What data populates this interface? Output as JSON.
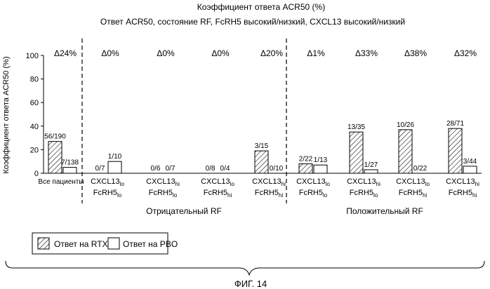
{
  "title": "Коэффициент ответа ACR50 (%)",
  "subtitle": "Ответ ACR50, состояние RF, FcRH5 высокий/низкий, CXCL13 высокий/низкий",
  "figure_caption": "ФИГ. 14",
  "colors": {
    "ink": "#000000",
    "bar_rtx_fill": "hatch",
    "bar_pbo_fill": "#ffffff"
  },
  "chart_data": {
    "type": "bar",
    "ylabel": "Коэффициент ответа ACR50 (%)",
    "ylim": [
      0,
      100
    ],
    "yticks": [
      0,
      20,
      40,
      60,
      80,
      100
    ],
    "grid": false,
    "legend_position": "bottom-left",
    "series": [
      {
        "name": "Ответ на RTX",
        "values": [
          27,
          0,
          0,
          0,
          19,
          8,
          35,
          37,
          38
        ],
        "labels": [
          "56/190",
          "0/7",
          "0/6",
          "0/8",
          "3/15",
          "2/22",
          "13/35",
          "10/26",
          "28/71"
        ]
      },
      {
        "name": "Ответ на PBO",
        "values": [
          5,
          10,
          0,
          0,
          0,
          7,
          3,
          0,
          6
        ],
        "labels": [
          "7/138",
          "1/10",
          "0/7",
          "0/4",
          "0/10",
          "1/13",
          "1/27",
          "0/22",
          "3/44"
        ]
      }
    ],
    "groups": [
      {
        "label": "Все пациенты",
        "delta": "Δ24%"
      },
      {
        "cxcl": "CXCL13",
        "cxcl_sub": "lo",
        "fcrh": "FcRH5",
        "fcrh_sub": "lo",
        "delta": "Δ0%"
      },
      {
        "cxcl": "CXCL13",
        "cxcl_sub": "hi",
        "fcrh": "FcRH5",
        "fcrh_sub": "lo",
        "delta": "Δ0%"
      },
      {
        "cxcl": "CXCL13",
        "cxcl_sub": "lo",
        "fcrh": "FcRH5",
        "fcrh_sub": "hi",
        "delta": "Δ0%"
      },
      {
        "cxcl": "CXCL13",
        "cxcl_sub": "hi",
        "fcrh": "FcRH5",
        "fcrh_sub": "hi",
        "delta": "Δ20%"
      },
      {
        "cxcl": "CXCL13",
        "cxcl_sub": "lo",
        "fcrh": "FcRH5",
        "fcrh_sub": "lo",
        "delta": "Δ1%"
      },
      {
        "cxcl": "CXCL13",
        "cxcl_sub": "hi",
        "fcrh": "FcRH5",
        "fcrh_sub": "lo",
        "delta": "Δ33%"
      },
      {
        "cxcl": "CXCL13",
        "cxcl_sub": "lo",
        "fcrh": "FcRH5",
        "fcrh_sub": "hi",
        "delta": "Δ38%"
      },
      {
        "cxcl": "CXCL13",
        "cxcl_sub": "hi",
        "fcrh": "FcRH5",
        "fcrh_sub": "hi",
        "delta": "Δ32%"
      }
    ],
    "sections": [
      {
        "label": "Отрицательный RF"
      },
      {
        "label": "Положительный RF"
      }
    ]
  }
}
